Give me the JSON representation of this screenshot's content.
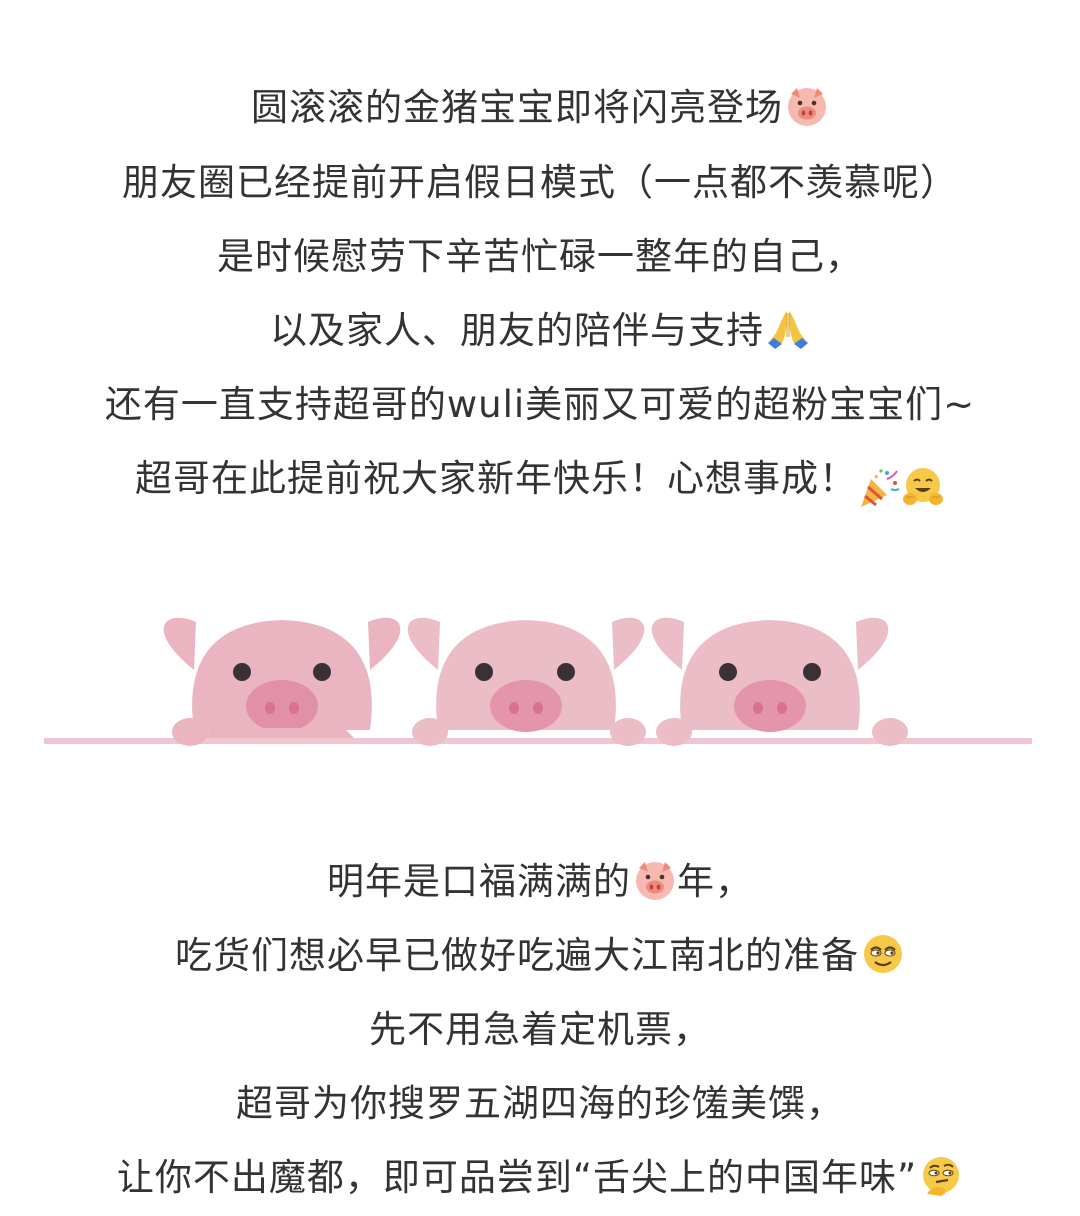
{
  "block1": {
    "lines": [
      {
        "text": "圆滚滚的金猪宝宝即将闪亮登场",
        "emoji": "pig-face-icon"
      },
      {
        "text": "朋友圈已经提前开启假日模式（一点都不羡慕呢）"
      },
      {
        "text": "是时候慰劳下辛苦忙碌一整年的自己，"
      },
      {
        "text": "以及家人、朋友的陪伴与支持",
        "emoji": "folded-hands-icon"
      },
      {
        "text": "还有一直支持超哥的wuli美丽又可爱的超粉宝宝们~"
      },
      {
        "text": "超哥在此提前祝大家新年快乐！心想事成！",
        "emoji": "party-popper-icon",
        "emoji2": "hugging-face-icon"
      }
    ]
  },
  "banner": {
    "icon": "three-pigs-illustration",
    "colors": {
      "pig": "#eab5c1",
      "snout": "#e290a7",
      "nostril": "#d9718f",
      "eye": "#3a3035",
      "line": "#f0c6d0"
    }
  },
  "block2": {
    "lines": [
      {
        "pre": "明年是口福满满的",
        "emoji": "pig-face-icon",
        "post": "年，"
      },
      {
        "text": "吃货们想必早已做好吃遍大江南北的准备",
        "emoji": "relieved-face-icon"
      },
      {
        "text": "先不用急着定机票，"
      },
      {
        "text": "超哥为你搜罗五湖四海的珍馐美馔，"
      },
      {
        "text": "让你不出魔都，即可品尝到“舌尖上的中国年味”",
        "emoji": "thinking-face-icon"
      }
    ]
  }
}
